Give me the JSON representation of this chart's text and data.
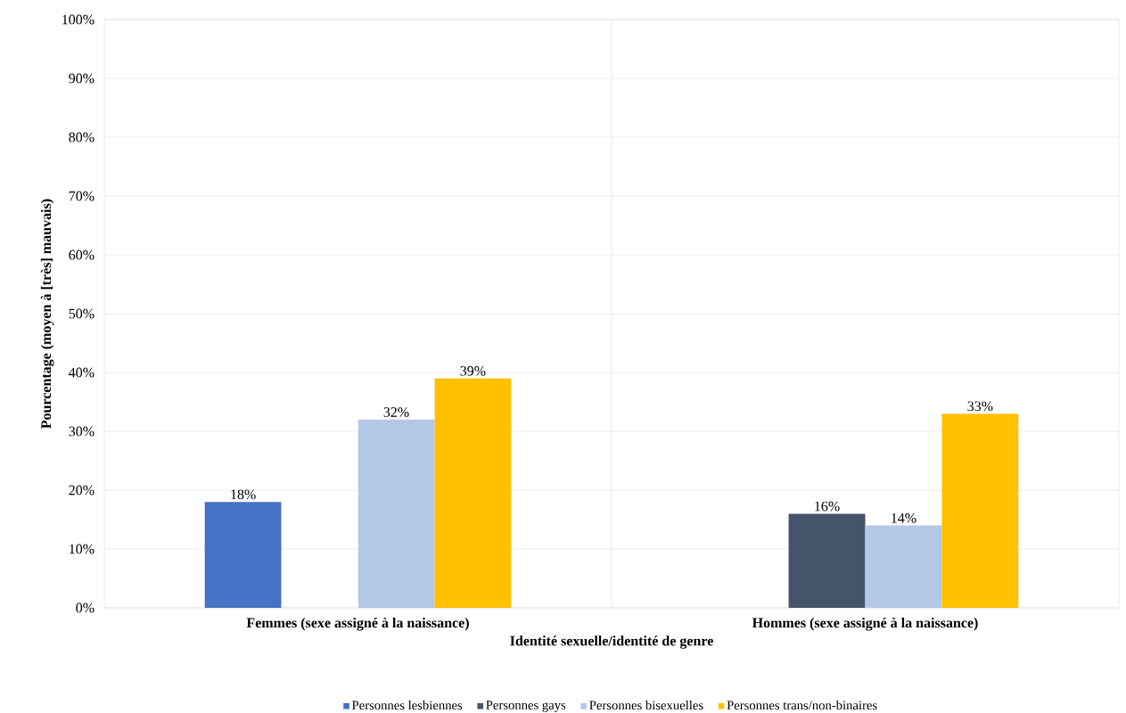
{
  "chart_data": {
    "type": "bar",
    "xlabel": "Identité sexuelle/identité de genre",
    "ylabel": "Pourcentage (moyen à [très] mauvais)",
    "categories": [
      "Femmes (sexe assigné à la naissance)",
      "Hommes (sexe assigné à la naissance)"
    ],
    "series": [
      {
        "name": "Personnes lesbiennes",
        "color": "#4472c4",
        "values": [
          18,
          null
        ],
        "value_labels": [
          "18%",
          null
        ]
      },
      {
        "name": "Personnes gays",
        "color": "#44546a",
        "values": [
          null,
          16
        ],
        "value_labels": [
          null,
          "16%"
        ]
      },
      {
        "name": "Personnes bisexuelles",
        "color": "#b4c7e7",
        "values": [
          32,
          14
        ],
        "value_labels": [
          "32%",
          "14%"
        ]
      },
      {
        "name": "Personnes trans/non-binaires",
        "color": "#ffc000",
        "values": [
          39,
          33
        ],
        "value_labels": [
          "39%",
          "33%"
        ]
      }
    ],
    "ylim": [
      0,
      100
    ],
    "yticks": [
      {
        "value": 0,
        "label": "0%"
      },
      {
        "value": 10,
        "label": "10%"
      },
      {
        "value": 20,
        "label": "20%"
      },
      {
        "value": 30,
        "label": "30%"
      },
      {
        "value": 40,
        "label": "40%"
      },
      {
        "value": 50,
        "label": "50%"
      },
      {
        "value": 60,
        "label": "60%"
      },
      {
        "value": 70,
        "label": "70%"
      },
      {
        "value": 80,
        "label": "80%"
      },
      {
        "value": 90,
        "label": "90%"
      },
      {
        "value": 100,
        "label": "100%"
      }
    ],
    "grid": true,
    "legend": "bottom"
  }
}
